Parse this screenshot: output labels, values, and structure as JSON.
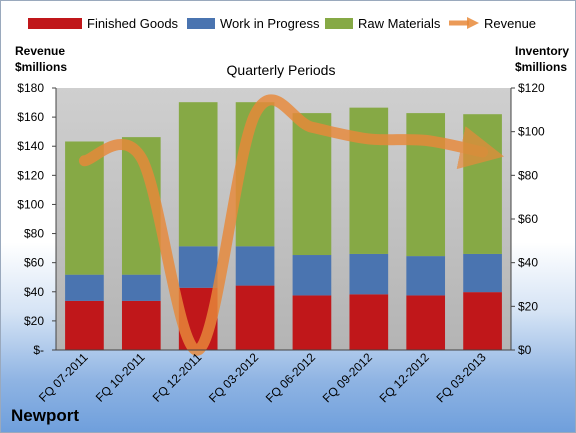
{
  "company": "Newport",
  "chart_data": {
    "type": "bar",
    "title": "Quarterly Periods",
    "categories": [
      "FQ 07-2011",
      "FQ 10-2011",
      "FQ 12-2011",
      "FQ 03-2012",
      "FQ 06-2012",
      "FQ 09-2012",
      "FQ 12-2012",
      "FQ 03-2013"
    ],
    "stacked": true,
    "left_axis": {
      "label_line1": "Revenue",
      "label_line2": "$millions",
      "min": 0,
      "max": 180,
      "step": 20,
      "ticks": [
        "$-",
        "$20",
        "$40",
        "$60",
        "$80",
        "$100",
        "$120",
        "$140",
        "$160",
        "$180"
      ]
    },
    "right_axis": {
      "label_line1": "Inventory",
      "label_line2": "$millions",
      "min": 0,
      "max": 120,
      "step": 20,
      "ticks": [
        "$0",
        "$20",
        "$40",
        "$60",
        "$80",
        "$100",
        "$120"
      ]
    },
    "series": [
      {
        "name": "Finished Goods",
        "axis": "right",
        "color": "#c0171a",
        "values": [
          22.5,
          22.5,
          28.5,
          29.5,
          25,
          25.5,
          25,
          26.5
        ]
      },
      {
        "name": "Work in Progress",
        "axis": "right",
        "color": "#4a74b0",
        "values": [
          12,
          12,
          19,
          18,
          18.5,
          18.5,
          18,
          17.5
        ]
      },
      {
        "name": "Raw Materials",
        "axis": "right",
        "color": "#86a945",
        "values": [
          61,
          63,
          66,
          66,
          65,
          67,
          65.5,
          64
        ]
      },
      {
        "name": "Revenue",
        "axis": "left",
        "type": "line",
        "color": "#e8893a",
        "values": [
          130,
          132,
          0,
          162,
          153,
          145,
          144,
          136
        ]
      }
    ],
    "legend": [
      "Finished Goods",
      "Work in Progress",
      "Raw Materials",
      "Revenue"
    ],
    "legend_position": "top",
    "grid": false
  }
}
